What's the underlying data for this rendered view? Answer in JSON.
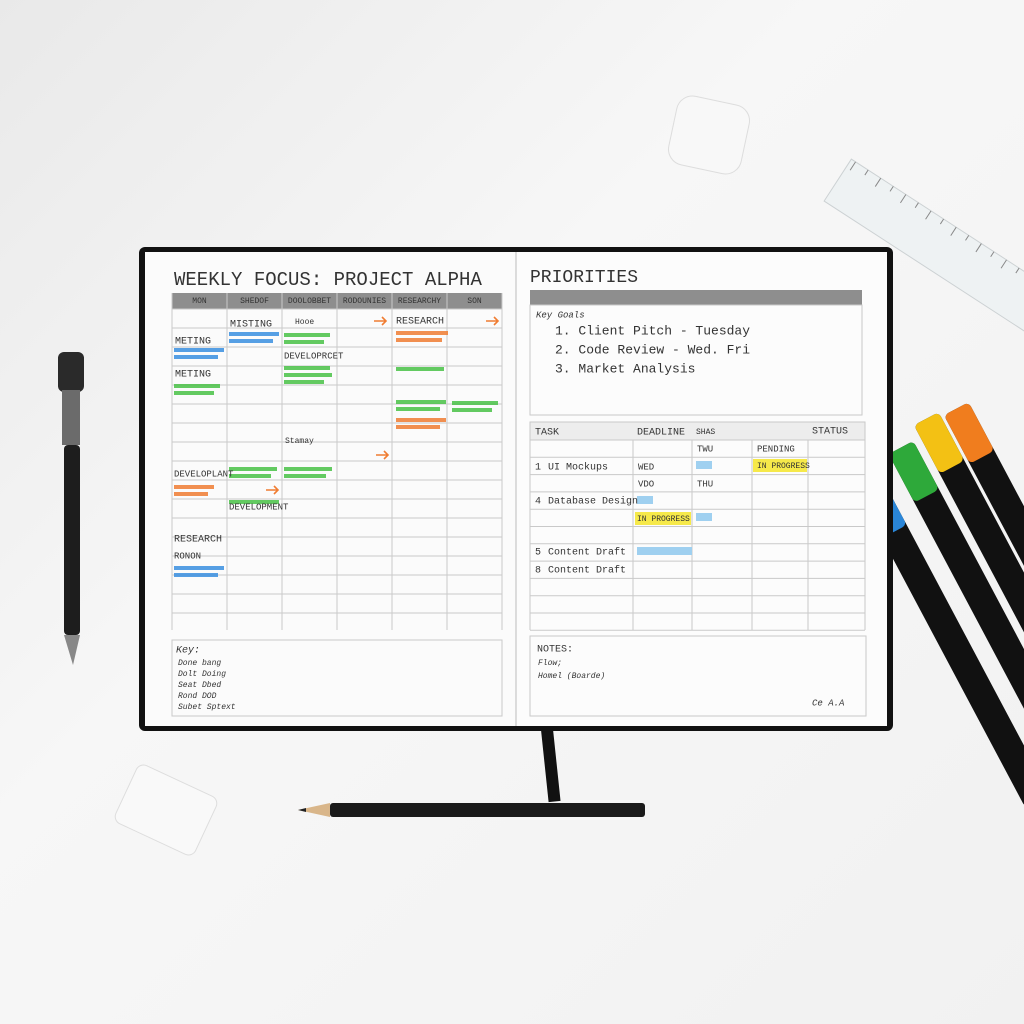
{
  "left_page": {
    "title": "WEEKLY FOCUS: PROJECT ALPHA",
    "days": [
      "MON",
      "SHEDOF",
      "DOOLOBBET",
      "RODOUNIES",
      "RESEARCHY",
      "SON"
    ],
    "entries": [
      "MISTING",
      "METING",
      "METING",
      "DEVELOPRCET",
      "Hooe",
      "RESEARCH",
      "Stamay",
      "DEVELOPLANT",
      "DEVELOPMENT",
      "RESEARCH",
      "RONON"
    ],
    "key": {
      "title": "Key:",
      "items": [
        "Done bang",
        "Dolt Doing",
        "Seat Dbed",
        "Rond DOD",
        "Subet Sptext"
      ]
    }
  },
  "right_page": {
    "title": "PRIORITIES",
    "subtitle": "Key Goals",
    "priorities": [
      "1. Client Pitch - Tuesday",
      "2. Code Review - Wed. Fri",
      "3. Market Analysis"
    ],
    "table": {
      "headers": [
        "TASK",
        "DEADLINE",
        "SHAS",
        "STATUS"
      ],
      "cells": [
        "TWU",
        "PENDING",
        "1",
        "UI Mockups",
        "WED",
        "IN PROGRESS",
        "VDO",
        "THU",
        "4",
        "Database Design",
        "IN PROGRESS",
        "5",
        "Content Draft",
        "8",
        "Content Draft"
      ]
    },
    "notes": {
      "title": "NOTES:",
      "lines": [
        "Flow;",
        "Homel (Boarde)"
      ]
    },
    "signature": "Ce A.A"
  }
}
